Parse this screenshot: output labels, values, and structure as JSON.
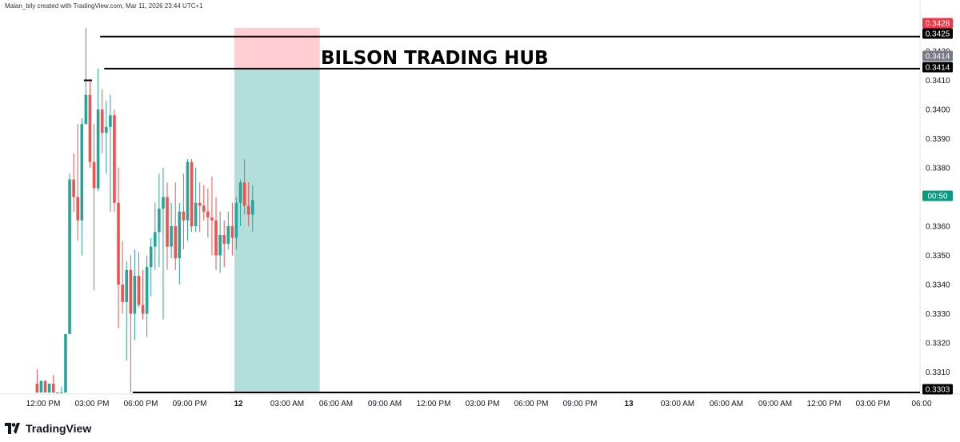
{
  "header": {
    "caption": "Malan_bily created with TradingView.com, Mar 11, 2026 23:44 UTC+1"
  },
  "footer": {
    "brand": "TradingView"
  },
  "annotation": {
    "text": "BILSON TRADING HUB"
  },
  "colors": {
    "up": "#26a69a",
    "down": "#ef5350",
    "target_zone": "#b2dfdb",
    "stop_zone": "#ffcdd2",
    "line": "#000000"
  },
  "chart_data": {
    "type": "candlestick",
    "ylim": [
      0.33,
      0.3431
    ],
    "y_ticks": [
      "0.3310",
      "0.3320",
      "0.3330",
      "0.3340",
      "0.3350",
      "0.3360",
      "0.3370",
      "0.3380",
      "0.3390",
      "0.3400",
      "0.3410",
      "0.3420"
    ],
    "x_ticks": [
      "12:00 PM",
      "03:00 PM",
      "06:00 PM",
      "09:00 PM",
      "12",
      "03:00 AM",
      "06:00 AM",
      "09:00 AM",
      "12:00 PM",
      "03:00 PM",
      "06:00 PM",
      "09:00 PM",
      "13",
      "03:00 AM",
      "06:00 AM",
      "09:00 AM",
      "12:00 PM",
      "03:00 PM",
      "06:00"
    ],
    "time_range": [
      "Mar 11 11:30",
      "Mar 13 18:15"
    ],
    "price_badges": [
      {
        "label": "0.3428",
        "kind": "red"
      },
      {
        "label": "0.3425",
        "kind": "black"
      },
      {
        "label": "0.3414",
        "kind": "gray"
      },
      {
        "label": "0.3414",
        "kind": "black"
      },
      {
        "label": "00:50",
        "kind": "green"
      },
      {
        "label": "0.3303",
        "kind": "black"
      }
    ],
    "horizontal_lines": [
      0.3425,
      0.3414,
      0.3303
    ],
    "position_tool": {
      "entry": 0.3414,
      "stop": 0.3428,
      "target": 0.3303,
      "start": "Mar 11 23:45",
      "end": "Mar 12 05:00"
    },
    "candles": [
      [
        0.3306,
        0.3311,
        0.3303,
        0.3303
      ],
      [
        0.3303,
        0.3307,
        0.3303,
        0.3307
      ],
      [
        0.3307,
        0.3307,
        0.3303,
        0.3303
      ],
      [
        0.3303,
        0.3306,
        0.3303,
        0.3306
      ],
      [
        0.3306,
        0.3309,
        0.3303,
        0.3303
      ],
      [
        0.3303,
        0.3303,
        0.3303,
        0.3303
      ],
      [
        0.3303,
        0.3305,
        0.3303,
        0.3303
      ],
      [
        0.3303,
        0.3323,
        0.3303,
        0.3323
      ],
      [
        0.3323,
        0.3378,
        0.3323,
        0.3376
      ],
      [
        0.3376,
        0.3385,
        0.3365,
        0.337
      ],
      [
        0.337,
        0.3395,
        0.3355,
        0.3362
      ],
      [
        0.3362,
        0.3397,
        0.335,
        0.3395
      ],
      [
        0.3395,
        0.3428,
        0.3395,
        0.3405
      ],
      [
        0.3405,
        0.341,
        0.338,
        0.3382
      ],
      [
        0.3382,
        0.3395,
        0.3338,
        0.3373
      ],
      [
        0.3373,
        0.3414,
        0.3372,
        0.34
      ],
      [
        0.34,
        0.3407,
        0.3385,
        0.3392
      ],
      [
        0.3392,
        0.3403,
        0.3378,
        0.3394
      ],
      [
        0.3394,
        0.3405,
        0.3365,
        0.3398
      ],
      [
        0.3398,
        0.34,
        0.3365,
        0.3368
      ],
      [
        0.3368,
        0.338,
        0.3325,
        0.334
      ],
      [
        0.334,
        0.3355,
        0.333,
        0.3334
      ],
      [
        0.3334,
        0.3348,
        0.3314,
        0.3345
      ],
      [
        0.3345,
        0.335,
        0.3303,
        0.333
      ],
      [
        0.333,
        0.3352,
        0.3321,
        0.3343
      ],
      [
        0.3343,
        0.3351,
        0.3332,
        0.3333
      ],
      [
        0.3333,
        0.3345,
        0.3328,
        0.333
      ],
      [
        0.333,
        0.335,
        0.3322,
        0.3346
      ],
      [
        0.3346,
        0.3356,
        0.3336,
        0.3353
      ],
      [
        0.3353,
        0.3368,
        0.3345,
        0.3358
      ],
      [
        0.3358,
        0.3378,
        0.3346,
        0.3366
      ],
      [
        0.3366,
        0.338,
        0.3328,
        0.337
      ],
      [
        0.337,
        0.3375,
        0.3345,
        0.3353
      ],
      [
        0.3353,
        0.3368,
        0.3349,
        0.336
      ],
      [
        0.336,
        0.3375,
        0.3345,
        0.3349
      ],
      [
        0.3349,
        0.3368,
        0.334,
        0.3365
      ],
      [
        0.3365,
        0.3378,
        0.3352,
        0.3362
      ],
      [
        0.3362,
        0.3383,
        0.3355,
        0.3382
      ],
      [
        0.3382,
        0.3383,
        0.3358,
        0.336
      ],
      [
        0.336,
        0.338,
        0.3358,
        0.3368
      ],
      [
        0.3368,
        0.3375,
        0.3358,
        0.3367
      ],
      [
        0.3367,
        0.3374,
        0.3362,
        0.3365
      ],
      [
        0.3365,
        0.3373,
        0.3356,
        0.3363
      ],
      [
        0.3363,
        0.3377,
        0.335,
        0.3362
      ],
      [
        0.3362,
        0.337,
        0.3345,
        0.335
      ],
      [
        0.335,
        0.3365,
        0.3344,
        0.3357
      ],
      [
        0.3357,
        0.3362,
        0.3346,
        0.3354
      ],
      [
        0.3354,
        0.3365,
        0.3352,
        0.336
      ],
      [
        0.336,
        0.3368,
        0.335,
        0.3356
      ],
      [
        0.3356,
        0.337,
        0.3352,
        0.3368
      ],
      [
        0.3368,
        0.3376,
        0.336,
        0.3375
      ],
      [
        0.3375,
        0.3383,
        0.3364,
        0.3367
      ],
      [
        0.3367,
        0.3375,
        0.336,
        0.3364
      ],
      [
        0.3364,
        0.3374,
        0.3358,
        0.3369
      ]
    ]
  }
}
